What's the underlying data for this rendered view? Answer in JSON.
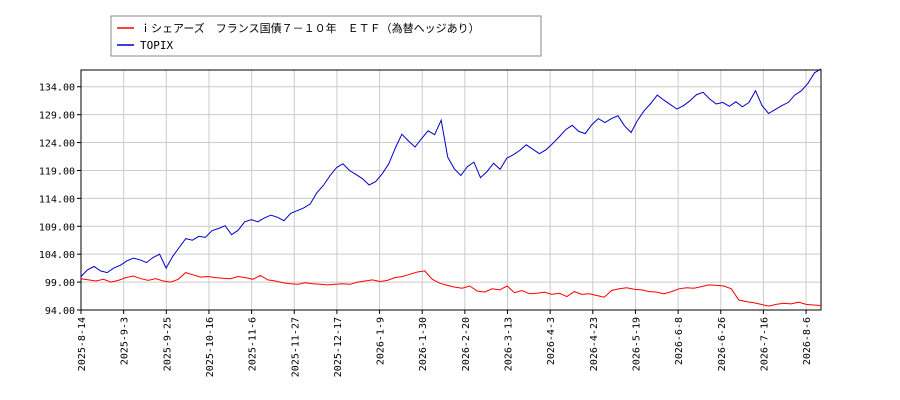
{
  "chart_data": {
    "type": "line",
    "title": "",
    "xlabel": "",
    "ylabel": "",
    "ylim": [
      94.0,
      137.0
    ],
    "yticks": [
      "94.00",
      "99.00",
      "104.00",
      "109.00",
      "114.00",
      "119.00",
      "124.00",
      "129.00",
      "134.00"
    ],
    "ytick_values": [
      94,
      99,
      104,
      109,
      114,
      119,
      124,
      129,
      134
    ],
    "xticks": [
      "2025-8-14",
      "2025-9-3",
      "2025-9-25",
      "2025-10-16",
      "2025-11-6",
      "2025-11-27",
      "2025-12-17",
      "2026-1-9",
      "2026-1-30",
      "2026-2-20",
      "2026-3-13",
      "2026-4-3",
      "2026-4-23",
      "2026-5-19",
      "2026-6-8",
      "2026-6-26",
      "2026-7-16",
      "2026-8-6"
    ],
    "grid": true,
    "legend_position": "top-left",
    "series": [
      {
        "name": "ｉシェアーズ　フランス国債７－１０年　ＥＴＦ（為替ヘッジあり）",
        "color": "#ff0000",
        "points": [
          [
            0,
            99.6
          ],
          [
            1,
            99.4
          ],
          [
            2,
            99.2
          ],
          [
            3,
            99.5
          ],
          [
            4,
            99.0
          ],
          [
            5,
            99.3
          ],
          [
            6,
            99.8
          ],
          [
            7,
            100.1
          ],
          [
            8,
            99.6
          ],
          [
            9,
            99.3
          ],
          [
            10,
            99.6
          ],
          [
            11,
            99.2
          ],
          [
            12,
            99.0
          ],
          [
            13,
            99.5
          ],
          [
            14,
            100.7
          ],
          [
            15,
            100.3
          ],
          [
            16,
            99.9
          ],
          [
            17,
            100.0
          ],
          [
            18,
            99.8
          ],
          [
            19,
            99.7
          ],
          [
            20,
            99.6
          ],
          [
            21,
            100.0
          ],
          [
            22,
            99.8
          ],
          [
            23,
            99.5
          ],
          [
            24,
            100.2
          ],
          [
            25,
            99.4
          ],
          [
            26,
            99.2
          ],
          [
            27,
            98.9
          ],
          [
            28,
            98.7
          ],
          [
            29,
            98.6
          ],
          [
            30,
            98.9
          ],
          [
            31,
            98.7
          ],
          [
            32,
            98.6
          ],
          [
            33,
            98.5
          ],
          [
            34,
            98.6
          ],
          [
            35,
            98.7
          ],
          [
            36,
            98.6
          ],
          [
            37,
            99.0
          ],
          [
            38,
            99.2
          ],
          [
            39,
            99.4
          ],
          [
            40,
            99.1
          ],
          [
            41,
            99.3
          ],
          [
            42,
            99.8
          ],
          [
            43,
            100.0
          ],
          [
            44,
            100.4
          ],
          [
            45,
            100.8
          ],
          [
            46,
            101.0
          ],
          [
            47,
            99.5
          ],
          [
            48,
            98.8
          ],
          [
            49,
            98.4
          ],
          [
            50,
            98.1
          ],
          [
            51,
            97.9
          ],
          [
            52,
            98.3
          ],
          [
            53,
            97.4
          ],
          [
            54,
            97.2
          ],
          [
            55,
            97.8
          ],
          [
            56,
            97.6
          ],
          [
            57,
            98.3
          ],
          [
            58,
            97.1
          ],
          [
            59,
            97.5
          ],
          [
            60,
            96.9
          ],
          [
            61,
            97.0
          ],
          [
            62,
            97.2
          ],
          [
            63,
            96.8
          ],
          [
            64,
            97.0
          ],
          [
            65,
            96.4
          ],
          [
            66,
            97.3
          ],
          [
            67,
            96.8
          ],
          [
            68,
            96.9
          ],
          [
            69,
            96.6
          ],
          [
            70,
            96.3
          ],
          [
            71,
            97.5
          ],
          [
            72,
            97.8
          ],
          [
            73,
            98.0
          ],
          [
            74,
            97.7
          ],
          [
            75,
            97.6
          ],
          [
            76,
            97.3
          ],
          [
            77,
            97.2
          ],
          [
            78,
            96.9
          ],
          [
            79,
            97.3
          ],
          [
            80,
            97.8
          ],
          [
            81,
            98.0
          ],
          [
            82,
            97.9
          ],
          [
            83,
            98.2
          ],
          [
            84,
            98.5
          ],
          [
            85,
            98.4
          ],
          [
            86,
            98.3
          ],
          [
            87,
            97.8
          ],
          [
            88,
            95.8
          ],
          [
            89,
            95.5
          ],
          [
            90,
            95.3
          ],
          [
            91,
            95.0
          ],
          [
            92,
            94.7
          ],
          [
            93,
            95.0
          ],
          [
            94,
            95.2
          ],
          [
            95,
            95.1
          ],
          [
            96,
            95.4
          ],
          [
            97,
            95.0
          ],
          [
            98,
            94.9
          ],
          [
            99,
            94.8
          ]
        ]
      },
      {
        "name": "TOPIX",
        "color": "#0000cc",
        "points": [
          [
            0,
            100.0
          ],
          [
            1,
            101.2
          ],
          [
            2,
            101.8
          ],
          [
            3,
            101.0
          ],
          [
            4,
            100.7
          ],
          [
            5,
            101.5
          ],
          [
            6,
            102.0
          ],
          [
            7,
            102.8
          ],
          [
            8,
            103.3
          ],
          [
            9,
            103.0
          ],
          [
            10,
            102.5
          ],
          [
            11,
            103.4
          ],
          [
            12,
            104.0
          ],
          [
            13,
            101.5
          ],
          [
            14,
            103.6
          ],
          [
            15,
            105.2
          ],
          [
            16,
            106.8
          ],
          [
            17,
            106.5
          ],
          [
            18,
            107.2
          ],
          [
            19,
            107.0
          ],
          [
            20,
            108.2
          ],
          [
            21,
            108.6
          ],
          [
            22,
            109.1
          ],
          [
            23,
            107.5
          ],
          [
            24,
            108.3
          ],
          [
            25,
            109.8
          ],
          [
            26,
            110.2
          ],
          [
            27,
            109.8
          ],
          [
            28,
            110.5
          ],
          [
            29,
            111.0
          ],
          [
            30,
            110.6
          ],
          [
            31,
            110.0
          ],
          [
            32,
            111.3
          ],
          [
            33,
            111.8
          ],
          [
            34,
            112.3
          ],
          [
            35,
            113.0
          ],
          [
            36,
            115.0
          ],
          [
            37,
            116.3
          ],
          [
            38,
            118.0
          ],
          [
            39,
            119.5
          ],
          [
            40,
            120.2
          ],
          [
            41,
            119.0
          ],
          [
            42,
            118.3
          ],
          [
            43,
            117.5
          ],
          [
            44,
            116.4
          ],
          [
            45,
            117.0
          ],
          [
            46,
            118.4
          ],
          [
            47,
            120.2
          ],
          [
            48,
            123.0
          ],
          [
            49,
            125.5
          ],
          [
            50,
            124.3
          ],
          [
            51,
            123.2
          ],
          [
            52,
            124.7
          ],
          [
            53,
            126.1
          ],
          [
            54,
            125.4
          ],
          [
            55,
            128.0
          ],
          [
            56,
            121.4
          ],
          [
            57,
            119.3
          ],
          [
            58,
            118.1
          ],
          [
            59,
            119.7
          ],
          [
            60,
            120.5
          ],
          [
            61,
            117.7
          ],
          [
            62,
            118.8
          ],
          [
            63,
            120.3
          ],
          [
            64,
            119.2
          ],
          [
            65,
            121.2
          ],
          [
            66,
            121.8
          ],
          [
            67,
            122.6
          ],
          [
            68,
            123.6
          ],
          [
            69,
            122.8
          ],
          [
            70,
            122.0
          ],
          [
            71,
            122.7
          ],
          [
            72,
            123.8
          ],
          [
            73,
            125.0
          ],
          [
            74,
            126.3
          ],
          [
            75,
            127.1
          ],
          [
            76,
            126.0
          ],
          [
            77,
            125.6
          ],
          [
            78,
            127.2
          ],
          [
            79,
            128.3
          ],
          [
            80,
            127.6
          ],
          [
            81,
            128.3
          ],
          [
            82,
            128.8
          ],
          [
            83,
            127.0
          ],
          [
            84,
            125.8
          ],
          [
            85,
            128.0
          ],
          [
            86,
            129.7
          ],
          [
            87,
            131.0
          ],
          [
            88,
            132.5
          ],
          [
            89,
            131.6
          ],
          [
            90,
            130.8
          ],
          [
            91,
            130.0
          ],
          [
            92,
            130.6
          ],
          [
            93,
            131.5
          ],
          [
            94,
            132.6
          ],
          [
            95,
            133.0
          ],
          [
            96,
            131.8
          ],
          [
            97,
            130.9
          ],
          [
            98,
            131.2
          ],
          [
            99,
            130.5
          ],
          [
            100,
            131.3
          ],
          [
            101,
            130.4
          ],
          [
            102,
            131.2
          ],
          [
            103,
            133.3
          ],
          [
            104,
            130.6
          ],
          [
            105,
            129.2
          ],
          [
            106,
            129.9
          ],
          [
            107,
            130.6
          ],
          [
            108,
            131.2
          ],
          [
            109,
            132.5
          ],
          [
            110,
            133.3
          ],
          [
            111,
            134.6
          ],
          [
            112,
            136.5
          ],
          [
            113,
            137.2
          ]
        ]
      }
    ]
  }
}
